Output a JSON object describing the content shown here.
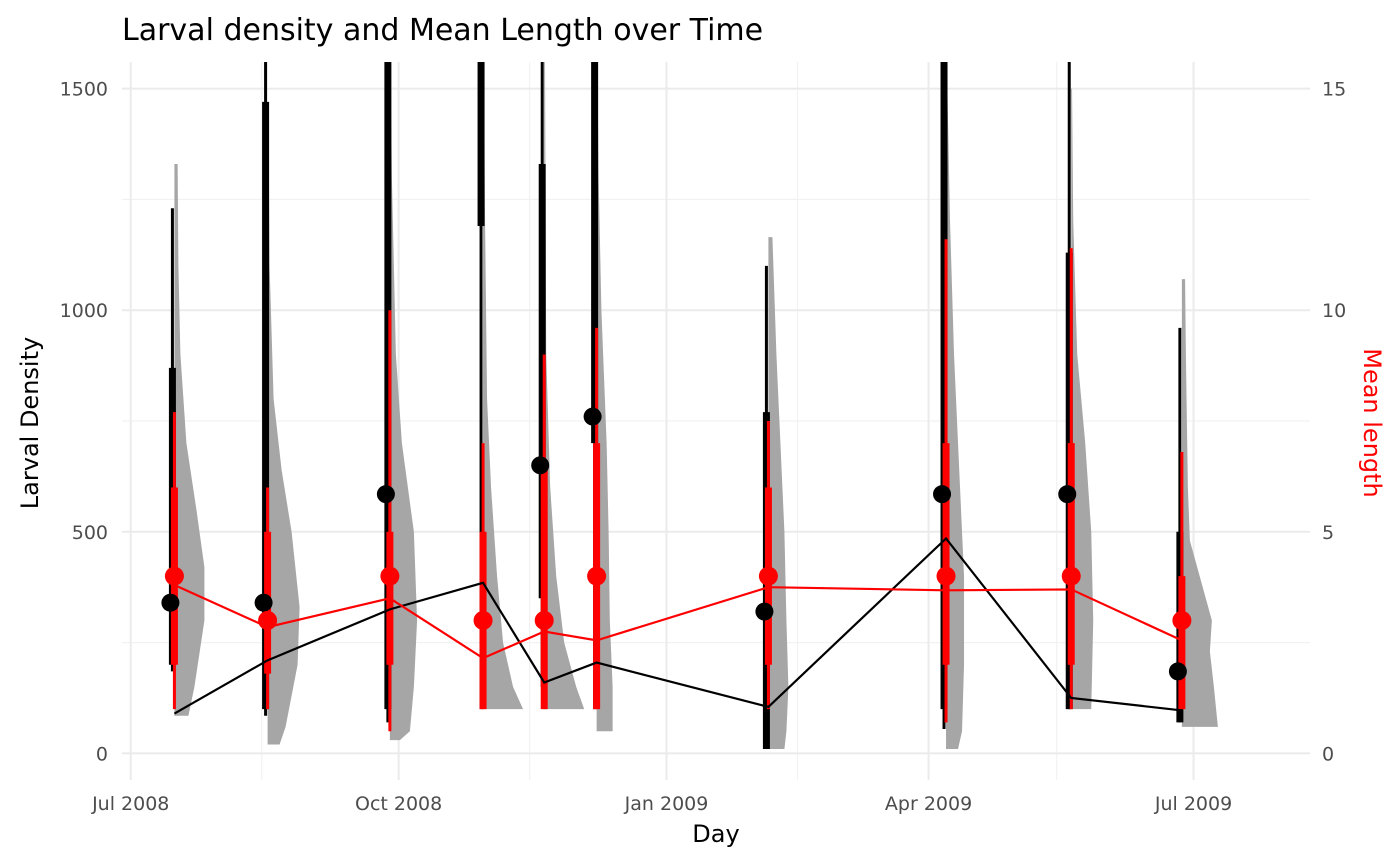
{
  "chart_data": {
    "type": "line",
    "title": "Larval density and Mean Length over Time",
    "xlabel": "Day",
    "ylabel": "Larval Density",
    "y2label": "Mean length",
    "x_ticks": [
      "Jul 2008",
      "Oct 2008",
      "Jan 2009",
      "Apr 2009",
      "Jul 2009"
    ],
    "x_tick_dates": [
      "2008-07-01",
      "2008-10-01",
      "2009-01-01",
      "2009-04-01",
      "2009-07-01"
    ],
    "x_minor_dates": [
      "2008-08-15",
      "2008-11-15",
      "2009-02-15",
      "2009-05-15"
    ],
    "xlim": [
      "2008-06-28",
      "2009-08-10"
    ],
    "y_ticks": [
      0,
      500,
      1000,
      1500
    ],
    "ylim": [
      -60,
      1560
    ],
    "y2_ticks": [
      0,
      5,
      10,
      15
    ],
    "y2lim": [
      -0.6,
      15.6
    ],
    "grid": true,
    "colors": {
      "density": "#000000",
      "length": "#ff0000",
      "distribution": "#a6a6a6"
    },
    "series": [
      {
        "name": "Larval Density",
        "dates": [
          "2008-07-16",
          "2008-08-17",
          "2008-09-28",
          "2008-10-30",
          "2008-11-20",
          "2008-12-08",
          "2009-02-05",
          "2009-04-07",
          "2009-05-20",
          "2009-06-27"
        ],
        "values": [
          90,
          210,
          325,
          385,
          160,
          205,
          105,
          485,
          125,
          97
        ],
        "points": [
          340,
          340,
          585,
          null,
          650,
          760,
          320,
          585,
          585,
          185
        ],
        "interval_inner": [
          [
            200,
            870
          ],
          [
            100,
            1470
          ],
          [
            100,
            1560
          ],
          [
            1190,
            1560
          ],
          [
            350,
            1330
          ],
          [
            700,
            1560
          ],
          [
            10,
            770
          ],
          [
            100,
            1560
          ],
          [
            100,
            1130
          ],
          [
            70,
            500
          ]
        ],
        "interval_outer": [
          [
            185,
            1230
          ],
          [
            85,
            1560
          ],
          [
            70,
            1560
          ],
          [
            100,
            1560
          ],
          [
            150,
            1560
          ],
          [
            100,
            1560
          ],
          [
            10,
            1100
          ],
          [
            55,
            1560
          ],
          [
            100,
            1560
          ],
          [
            70,
            960
          ]
        ]
      },
      {
        "name": "Mean length",
        "dates": [
          "2008-07-16",
          "2008-08-17",
          "2008-09-28",
          "2008-10-30",
          "2008-11-20",
          "2008-12-08",
          "2009-02-05",
          "2009-04-07",
          "2009-05-20",
          "2009-06-27"
        ],
        "values": [
          3.8,
          2.85,
          3.5,
          2.15,
          2.75,
          2.55,
          3.75,
          3.68,
          3.7,
          2.55
        ],
        "points": [
          4,
          3,
          4,
          3,
          3,
          4,
          4,
          4,
          4,
          3
        ],
        "interval_inner": [
          [
            2,
            6
          ],
          [
            1.8,
            5
          ],
          [
            2,
            5
          ],
          [
            1,
            5
          ],
          [
            1,
            6.5
          ],
          [
            1,
            7
          ],
          [
            2,
            6
          ],
          [
            2,
            7
          ],
          [
            2,
            7
          ],
          [
            1,
            4
          ]
        ],
        "interval_outer": [
          [
            1,
            7.7
          ],
          [
            1,
            6
          ],
          [
            0.5,
            10
          ],
          [
            1,
            7
          ],
          [
            1,
            9
          ],
          [
            1,
            9.6
          ],
          [
            1,
            7.5
          ],
          [
            0.7,
            11.6
          ],
          [
            1,
            11.4
          ],
          [
            1,
            6.8
          ]
        ]
      }
    ],
    "distributions": [
      {
        "date": "2008-07-16",
        "base": 85,
        "top": 1330,
        "profile": [
          [
            85,
            0.35
          ],
          [
            150,
            0.5
          ],
          [
            300,
            0.75
          ],
          [
            420,
            0.75
          ],
          [
            550,
            0.55
          ],
          [
            700,
            0.3
          ],
          [
            900,
            0.15
          ],
          [
            1100,
            0.1
          ],
          [
            1330,
            0.08
          ]
        ]
      },
      {
        "date": "2008-08-17",
        "base": 20,
        "top": 1470,
        "profile": [
          [
            20,
            0.3
          ],
          [
            60,
            0.45
          ],
          [
            200,
            0.75
          ],
          [
            330,
            0.8
          ],
          [
            500,
            0.6
          ],
          [
            640,
            0.35
          ],
          [
            800,
            0.15
          ],
          [
            1100,
            0.05
          ],
          [
            1470,
            0.02
          ]
        ]
      },
      {
        "date": "2008-09-28",
        "base": 30,
        "top": 1560,
        "profile": [
          [
            30,
            0.25
          ],
          [
            50,
            0.5
          ],
          [
            150,
            0.6
          ],
          [
            300,
            0.68
          ],
          [
            500,
            0.6
          ],
          [
            700,
            0.3
          ],
          [
            900,
            0.15
          ],
          [
            1300,
            0.05
          ],
          [
            1560,
            0.02
          ]
        ]
      },
      {
        "date": "2008-10-30",
        "base": 100,
        "top": 1560,
        "profile": [
          [
            100,
            1.0
          ],
          [
            150,
            0.75
          ],
          [
            250,
            0.5
          ],
          [
            400,
            0.35
          ],
          [
            600,
            0.2
          ],
          [
            800,
            0.1
          ],
          [
            1200,
            0.05
          ],
          [
            1560,
            0.02
          ]
        ]
      },
      {
        "date": "2008-11-20",
        "base": 100,
        "top": 1560,
        "profile": [
          [
            100,
            1.0
          ],
          [
            150,
            0.8
          ],
          [
            250,
            0.5
          ],
          [
            400,
            0.3
          ],
          [
            600,
            0.15
          ],
          [
            900,
            0.05
          ],
          [
            1560,
            0.02
          ]
        ]
      },
      {
        "date": "2008-12-08",
        "base": 50,
        "top": 1560,
        "profile": [
          [
            50,
            0.4
          ],
          [
            150,
            0.4
          ],
          [
            300,
            0.33
          ],
          [
            500,
            0.3
          ],
          [
            700,
            0.25
          ],
          [
            1000,
            0.12
          ],
          [
            1300,
            0.05
          ],
          [
            1560,
            0.02
          ]
        ]
      },
      {
        "date": "2009-02-05",
        "base": 10,
        "top": 1165,
        "profile": [
          [
            10,
            0.4
          ],
          [
            50,
            0.45
          ],
          [
            150,
            0.5
          ],
          [
            300,
            0.45
          ],
          [
            500,
            0.4
          ],
          [
            700,
            0.3
          ],
          [
            900,
            0.2
          ],
          [
            1165,
            0.1
          ]
        ]
      },
      {
        "date": "2009-04-07",
        "base": 10,
        "top": 1560,
        "profile": [
          [
            10,
            0.3
          ],
          [
            50,
            0.4
          ],
          [
            200,
            0.45
          ],
          [
            400,
            0.45
          ],
          [
            600,
            0.35
          ],
          [
            900,
            0.2
          ],
          [
            1200,
            0.1
          ],
          [
            1560,
            0.02
          ]
        ]
      },
      {
        "date": "2009-05-20",
        "base": 100,
        "top": 1500,
        "profile": [
          [
            100,
            0.5
          ],
          [
            300,
            0.55
          ],
          [
            500,
            0.5
          ],
          [
            700,
            0.35
          ],
          [
            900,
            0.15
          ],
          [
            1200,
            0.05
          ],
          [
            1500,
            0.02
          ]
        ]
      },
      {
        "date": "2009-06-27",
        "base": 60,
        "top": 1070,
        "profile": [
          [
            60,
            0.9
          ],
          [
            150,
            0.8
          ],
          [
            230,
            0.7
          ],
          [
            300,
            0.75
          ],
          [
            480,
            0.2
          ],
          [
            600,
            0.15
          ],
          [
            900,
            0.1
          ],
          [
            1070,
            0.08
          ]
        ]
      }
    ]
  }
}
